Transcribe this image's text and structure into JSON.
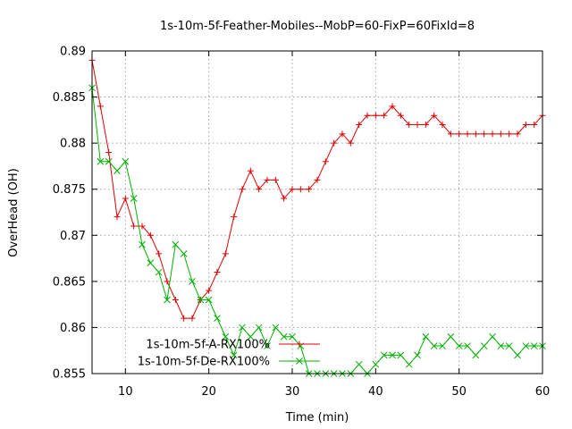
{
  "chart_data": {
    "type": "line",
    "title": "1s-10m-5f-Feather-Mobiles--MobP=60-FixP=60FixId=8",
    "xlabel": "Time (min)",
    "ylabel": "OverHead (OH)",
    "xlim": [
      6,
      60
    ],
    "ylim": [
      0.855,
      0.89
    ],
    "xticks": [
      10,
      20,
      30,
      40,
      50,
      60
    ],
    "xtick_labels": [
      "10",
      "20",
      "30",
      "40",
      "50",
      "60"
    ],
    "yticks": [
      0.855,
      0.86,
      0.865,
      0.87,
      0.875,
      0.88,
      0.885,
      0.89
    ],
    "ytick_labels": [
      "0.855",
      "0.86",
      "0.865",
      "0.87",
      "0.875",
      "0.88",
      "0.885",
      "0.89"
    ],
    "grid": true,
    "legend_position": "bottom-left",
    "x": [
      6,
      7,
      8,
      9,
      10,
      11,
      12,
      13,
      14,
      15,
      16,
      17,
      18,
      19,
      20,
      21,
      22,
      23,
      24,
      25,
      26,
      27,
      28,
      29,
      30,
      31,
      32,
      33,
      34,
      35,
      36,
      37,
      38,
      39,
      40,
      41,
      42,
      43,
      44,
      45,
      46,
      47,
      48,
      49,
      50,
      51,
      52,
      53,
      54,
      55,
      56,
      57,
      58,
      59,
      60
    ],
    "series": [
      {
        "name": "1s-10m-5f-A-RX100%",
        "color": "#e00000",
        "marker": "plus",
        "values": [
          0.889,
          0.884,
          0.879,
          0.872,
          0.874,
          0.871,
          0.871,
          0.87,
          0.868,
          0.865,
          0.863,
          0.861,
          0.861,
          0.863,
          0.864,
          0.866,
          0.868,
          0.872,
          0.875,
          0.877,
          0.875,
          0.876,
          0.876,
          0.874,
          0.875,
          0.875,
          0.875,
          0.876,
          0.878,
          0.88,
          0.881,
          0.88,
          0.882,
          0.883,
          0.883,
          0.883,
          0.884,
          0.883,
          0.882,
          0.882,
          0.882,
          0.883,
          0.882,
          0.881,
          0.881,
          0.881,
          0.881,
          0.881,
          0.881,
          0.881,
          0.881,
          0.881,
          0.882,
          0.882,
          0.883
        ]
      },
      {
        "name": "1s-10m-5f-De-RX100%",
        "color": "#00b000",
        "marker": "cross",
        "values": [
          0.886,
          0.878,
          0.878,
          0.877,
          0.878,
          0.874,
          0.869,
          0.867,
          0.866,
          0.863,
          0.869,
          0.868,
          0.865,
          0.863,
          0.863,
          0.861,
          0.859,
          0.857,
          0.86,
          0.859,
          0.86,
          0.858,
          0.86,
          0.859,
          0.859,
          0.858,
          0.855,
          0.855,
          0.855,
          0.855,
          0.855,
          0.855,
          0.856,
          0.855,
          0.856,
          0.857,
          0.857,
          0.857,
          0.856,
          0.857,
          0.859,
          0.858,
          0.858,
          0.859,
          0.858,
          0.858,
          0.857,
          0.858,
          0.859,
          0.858,
          0.858,
          0.857,
          0.858,
          0.858,
          0.858
        ]
      }
    ]
  }
}
